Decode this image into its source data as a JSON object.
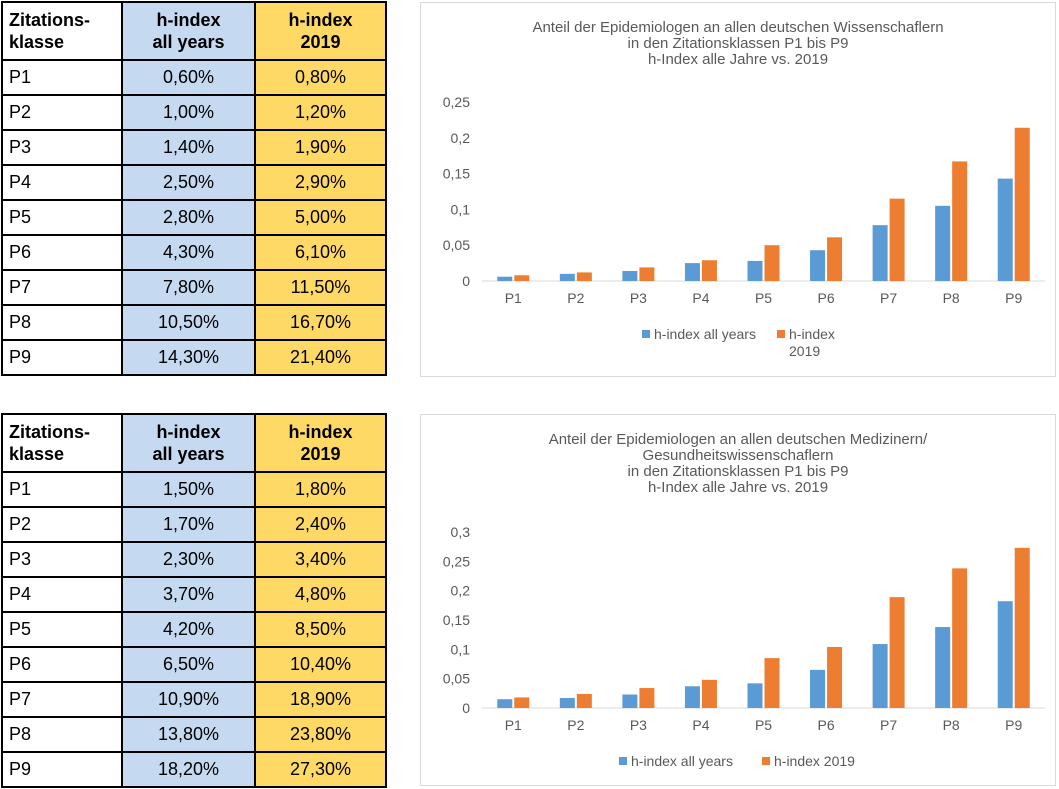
{
  "colors": {
    "series_all_years": "#5b9bd5",
    "series_2019": "#ed7d31",
    "col_all_years_bg": "#c5d9f1",
    "col_2019_bg": "#ffd966"
  },
  "table1": {
    "headers": {
      "c0_l1": "Zitations-",
      "c0_l2": "klasse",
      "c1_l1": "h-index",
      "c1_l2": "all years",
      "c2_l1": "h-index",
      "c2_l2": "2019"
    },
    "rows": [
      {
        "klasse": "P1",
        "all": "0,60%",
        "y2019": "0,80%"
      },
      {
        "klasse": "P2",
        "all": "1,00%",
        "y2019": "1,20%"
      },
      {
        "klasse": "P3",
        "all": "1,40%",
        "y2019": "1,90%"
      },
      {
        "klasse": "P4",
        "all": "2,50%",
        "y2019": "2,90%"
      },
      {
        "klasse": "P5",
        "all": "2,80%",
        "y2019": "5,00%"
      },
      {
        "klasse": "P6",
        "all": "4,30%",
        "y2019": "6,10%"
      },
      {
        "klasse": "P7",
        "all": "7,80%",
        "y2019": "11,50%"
      },
      {
        "klasse": "P8",
        "all": "10,50%",
        "y2019": "16,70%"
      },
      {
        "klasse": "P9",
        "all": "14,30%",
        "y2019": "21,40%"
      }
    ]
  },
  "table2": {
    "headers": {
      "c0_l1": "Zitations-",
      "c0_l2": "klasse",
      "c1_l1": "h-index",
      "c1_l2": "all years",
      "c2_l1": "h-index",
      "c2_l2": "2019"
    },
    "rows": [
      {
        "klasse": "P1",
        "all": "1,50%",
        "y2019": "1,80%"
      },
      {
        "klasse": "P2",
        "all": "1,70%",
        "y2019": "2,40%"
      },
      {
        "klasse": "P3",
        "all": "2,30%",
        "y2019": "3,40%"
      },
      {
        "klasse": "P4",
        "all": "3,70%",
        "y2019": "4,80%"
      },
      {
        "klasse": "P5",
        "all": "4,20%",
        "y2019": "8,50%"
      },
      {
        "klasse": "P6",
        "all": "6,50%",
        "y2019": "10,40%"
      },
      {
        "klasse": "P7",
        "all": "10,90%",
        "y2019": "18,90%"
      },
      {
        "klasse": "P8",
        "all": "13,80%",
        "y2019": "23,80%"
      },
      {
        "klasse": "P9",
        "all": "18,20%",
        "y2019": "27,30%"
      }
    ]
  },
  "chart_data": [
    {
      "type": "bar",
      "title_lines": [
        "Anteil der Epidemiologen an allen deutschen Wissenschaflern",
        "in den Zitationsklassen P1 bis P9",
        "h-Index alle Jahre vs. 2019"
      ],
      "categories": [
        "P1",
        "P2",
        "P3",
        "P4",
        "P5",
        "P6",
        "P7",
        "P8",
        "P9"
      ],
      "series": [
        {
          "name": "h-index all years",
          "values": [
            0.006,
            0.01,
            0.014,
            0.025,
            0.028,
            0.043,
            0.078,
            0.105,
            0.143
          ]
        },
        {
          "name_lines": [
            "h-index",
            "2019"
          ],
          "values": [
            0.008,
            0.012,
            0.019,
            0.029,
            0.05,
            0.061,
            0.115,
            0.167,
            0.214
          ]
        }
      ],
      "ylim": [
        0,
        0.25
      ],
      "yticks": [
        "0",
        "0,05",
        "0,1",
        "0,15",
        "0,2",
        "0,25"
      ],
      "ytick_values": [
        0,
        0.05,
        0.1,
        0.15,
        0.2,
        0.25
      ],
      "legend": "bottom",
      "grid": false
    },
    {
      "type": "bar",
      "title_lines": [
        "Anteil der Epidemiologen an allen deutschen Medizinern/",
        "Gesundheitswissenschaflern",
        "in den Zitationsklassen P1 bis P9",
        "h-Index alle Jahre vs. 2019"
      ],
      "categories": [
        "P1",
        "P2",
        "P3",
        "P4",
        "P5",
        "P6",
        "P7",
        "P8",
        "P9"
      ],
      "series": [
        {
          "name": "h-index all years",
          "values": [
            0.015,
            0.017,
            0.023,
            0.037,
            0.042,
            0.065,
            0.109,
            0.138,
            0.182
          ]
        },
        {
          "name": "h-index 2019",
          "values": [
            0.018,
            0.024,
            0.034,
            0.048,
            0.085,
            0.104,
            0.189,
            0.238,
            0.273
          ]
        }
      ],
      "ylim": [
        0,
        0.3
      ],
      "yticks": [
        "0",
        "0,05",
        "0,1",
        "0,15",
        "0,2",
        "0,25",
        "0,3"
      ],
      "ytick_values": [
        0,
        0.05,
        0.1,
        0.15,
        0.2,
        0.25,
        0.3
      ],
      "legend": "bottom",
      "grid": false
    }
  ]
}
